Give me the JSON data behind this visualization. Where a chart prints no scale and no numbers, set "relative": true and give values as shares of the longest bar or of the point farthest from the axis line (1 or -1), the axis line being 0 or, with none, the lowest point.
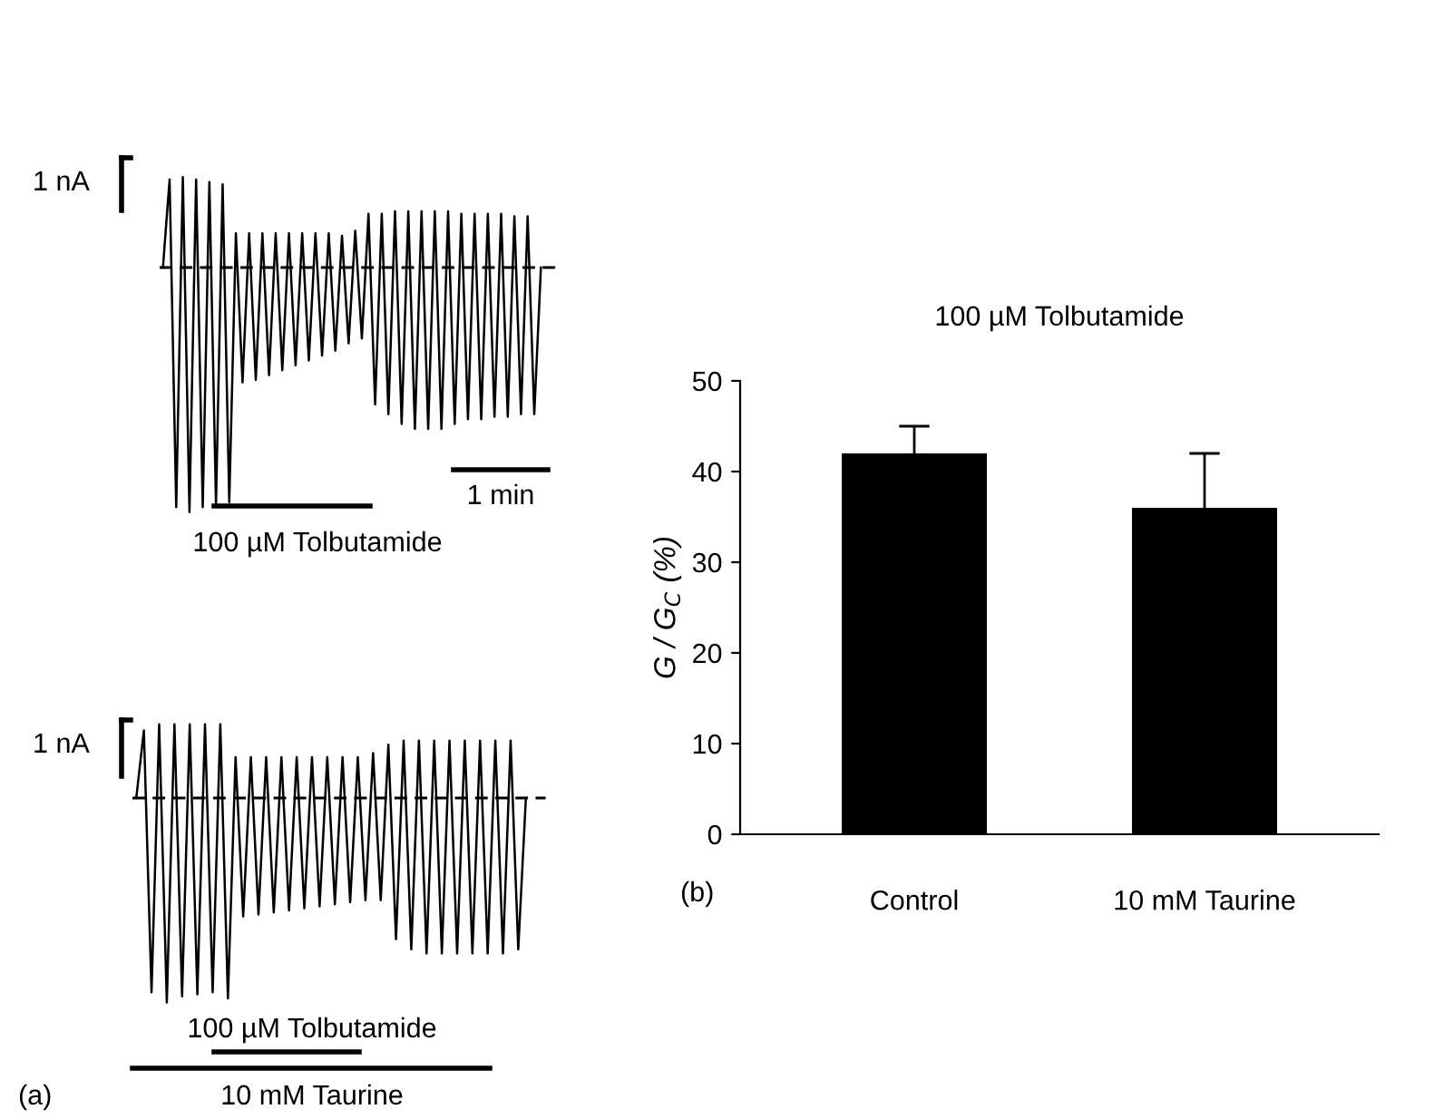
{
  "chart_data": [
    {
      "type": "line",
      "relative": true,
      "categories": [
        null,
        null,
        null,
        null,
        null,
        null,
        null,
        null,
        null,
        null,
        null,
        null,
        null,
        null,
        null,
        null,
        null,
        null,
        null,
        null,
        null,
        null,
        null,
        null,
        null,
        null,
        null,
        null,
        null,
        null,
        null,
        null,
        null,
        null,
        null,
        null,
        null,
        null,
        null,
        null,
        null,
        null,
        null,
        null,
        null,
        null,
        null,
        null,
        null,
        null,
        null,
        null,
        null,
        null,
        null,
        null,
        null,
        null
      ],
      "series": [
        {
          "color": "#000000",
          "values": [
            0,
            0.36,
            -0.98,
            0.37,
            -1,
            0.36,
            -0.98,
            0.35,
            -0.97,
            0.34,
            -0.96,
            0.14,
            -0.47,
            0.14,
            -0.46,
            0.14,
            -0.44,
            0.14,
            -0.42,
            0.14,
            -0.4,
            0.14,
            -0.38,
            0.14,
            -0.36,
            0.14,
            -0.34,
            0.13,
            -0.31,
            0.15,
            -0.29,
            0.22,
            -0.56,
            0.22,
            -0.6,
            0.23,
            -0.64,
            0.23,
            -0.66,
            0.23,
            -0.66,
            0.23,
            -0.66,
            0.23,
            -0.64,
            0.22,
            -0.62,
            0.22,
            -0.62,
            0.22,
            -0.61,
            0.22,
            -0.61,
            0.21,
            -0.6,
            0.21,
            -0.6,
            0
          ]
        }
      ],
      "ref_lines": [
        {
          "axis": "y",
          "value": 0,
          "color": "#000000",
          "line_style": "dashed"
        }
      ],
      "annotations": [
        "1 nA",
        "1 min",
        "100 µM Tolbutamide"
      ]
    },
    {
      "type": "line",
      "relative": true,
      "categories": [
        null,
        null,
        null,
        null,
        null,
        null,
        null,
        null,
        null,
        null,
        null,
        null,
        null,
        null,
        null,
        null,
        null,
        null,
        null,
        null,
        null,
        null,
        null,
        null,
        null,
        null,
        null,
        null,
        null,
        null,
        null,
        null,
        null,
        null,
        null,
        null,
        null,
        null,
        null,
        null,
        null,
        null,
        null,
        null,
        null,
        null,
        null,
        null,
        null,
        null,
        null,
        null
      ],
      "series": [
        {
          "color": "#000000",
          "values": [
            0,
            0.33,
            -0.95,
            0.36,
            -1,
            0.36,
            -0.97,
            0.36,
            -0.96,
            0.36,
            -0.95,
            0.36,
            -0.98,
            0.2,
            -0.58,
            0.2,
            -0.57,
            0.2,
            -0.56,
            0.2,
            -0.55,
            0.2,
            -0.54,
            0.2,
            -0.53,
            0.2,
            -0.52,
            0.2,
            -0.51,
            0.2,
            -0.5,
            0.22,
            -0.5,
            0.26,
            -0.69,
            0.28,
            -0.74,
            0.28,
            -0.76,
            0.28,
            -0.76,
            0.28,
            -0.76,
            0.28,
            -0.76,
            0.28,
            -0.76,
            0.28,
            -0.76,
            0.28,
            -0.74,
            0
          ]
        }
      ],
      "ref_lines": [
        {
          "axis": "y",
          "value": 0,
          "color": "#000000",
          "line_style": "dashed"
        }
      ],
      "annotations": [
        "1 nA",
        "100 µM Tolbutamide",
        "10 mM Taurine",
        "(a)"
      ]
    },
    {
      "type": "bar",
      "title": "100 µM Tolbutamide",
      "ylabel": "G / G$_{C}$ (%)",
      "categories": [
        "Control",
        "10 mM Taurine"
      ],
      "series": [
        {
          "color": "#000000",
          "values": [
            42,
            36
          ],
          "errors": [
            3,
            6
          ]
        }
      ],
      "ylim": [
        0,
        50
      ],
      "yticks": [
        0,
        10,
        20,
        30,
        40,
        50
      ],
      "grid": false,
      "annotations": [
        "(b)"
      ]
    }
  ]
}
